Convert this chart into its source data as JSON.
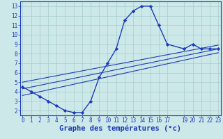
{
  "hours": [
    0,
    1,
    2,
    3,
    4,
    5,
    6,
    7,
    8,
    9,
    10,
    11,
    12,
    13,
    14,
    15,
    16,
    17,
    19,
    20,
    21,
    22,
    23
  ],
  "temps": [
    4.5,
    4.0,
    3.5,
    3.0,
    2.5,
    2.0,
    1.8,
    1.8,
    3.0,
    5.5,
    7.0,
    8.5,
    11.5,
    12.5,
    13.0,
    13.0,
    11.0,
    9.0,
    8.5,
    9.0,
    8.5,
    8.5,
    8.5
  ],
  "line1_x": [
    0,
    23
  ],
  "line1_y": [
    4.3,
    8.5
  ],
  "line2_x": [
    0,
    23
  ],
  "line2_y": [
    5.0,
    8.9
  ],
  "line3_x": [
    0,
    23
  ],
  "line3_y": [
    3.6,
    8.1
  ],
  "xlim": [
    -0.3,
    23.3
  ],
  "ylim": [
    1.5,
    13.5
  ],
  "xticks": [
    0,
    1,
    2,
    3,
    4,
    5,
    6,
    7,
    8,
    9,
    10,
    11,
    12,
    13,
    14,
    15,
    16,
    17,
    19,
    20,
    21,
    22,
    23
  ],
  "yticks": [
    2,
    3,
    4,
    5,
    6,
    7,
    8,
    9,
    10,
    11,
    12,
    13
  ],
  "xlabel": "Graphe des températures (°c)",
  "line_color": "#1c3ab8",
  "bg_color": "#cce8e8",
  "grid_color": "#a8cccc",
  "tick_label_fontsize": 5.5,
  "xlabel_fontsize": 7.5
}
